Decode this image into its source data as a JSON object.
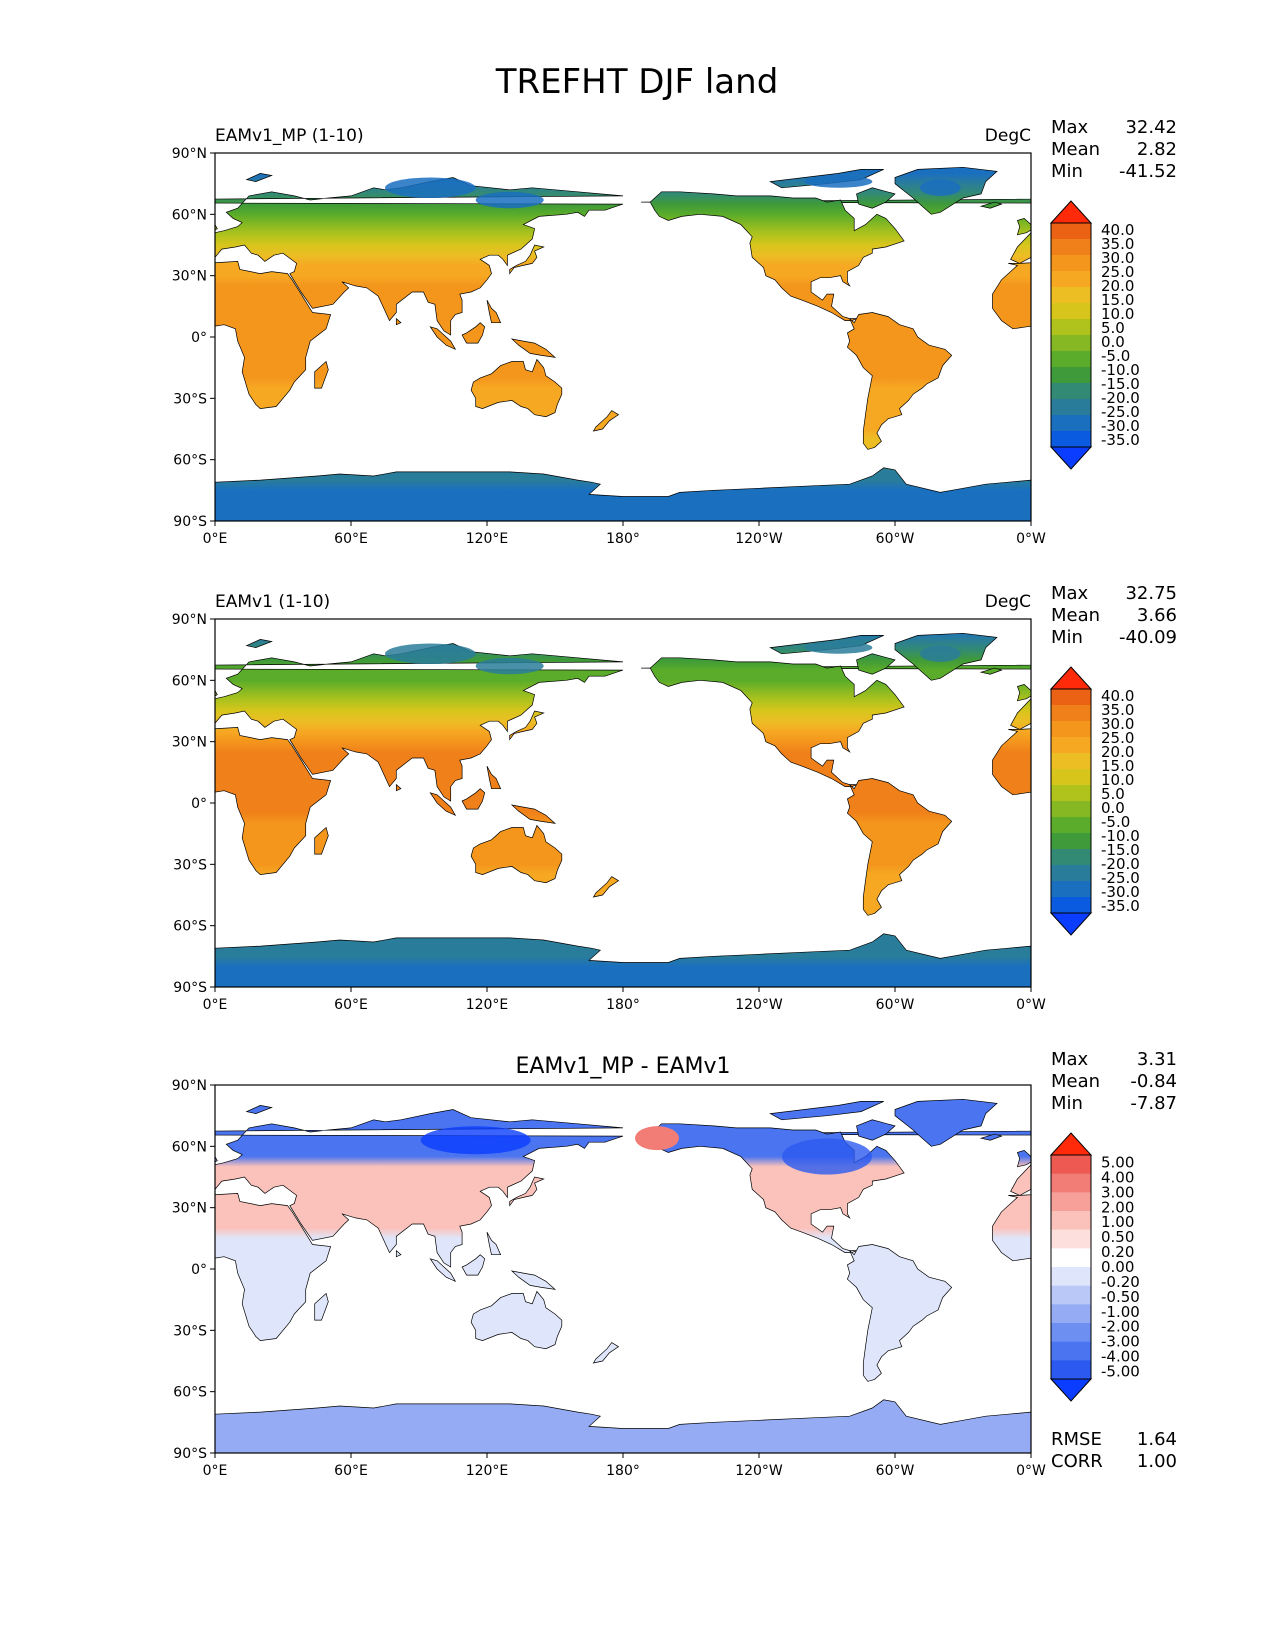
{
  "figure": {
    "title": "TREFHT DJF land",
    "lon_ticks": [
      "0°E",
      "60°E",
      "120°E",
      "180°",
      "120°W",
      "60°W",
      "0°W"
    ],
    "lat_ticks": [
      "90°N",
      "60°N",
      "30°N",
      "0°",
      "30°S",
      "60°S",
      "90°S"
    ],
    "stat_labels": {
      "max": "Max",
      "mean": "Mean",
      "min": "Min",
      "rmse": "RMSE",
      "corr": "CORR"
    }
  },
  "colors": {
    "land_outline": "#000000",
    "temp_scale": [
      "#0a3dff",
      "#0a5be0",
      "#1a6fbf",
      "#2a7d9a",
      "#338a74",
      "#3f9a3a",
      "#5aac2a",
      "#86b823",
      "#b0c31d",
      "#d7c51c",
      "#ecbe24",
      "#f6a823",
      "#f4961c",
      "#f0811a",
      "#ec6215",
      "#ff2a0a"
    ],
    "diff_scale": [
      "#0a3dff",
      "#2c5af0",
      "#4a74f0",
      "#6d8ff2",
      "#95acf4",
      "#b9c8f6",
      "#dfe6fb",
      "#ffffff",
      "#fde0dd",
      "#fbc2bb",
      "#f7a099",
      "#f27d76",
      "#ee5a52",
      "#ff2a0a"
    ]
  },
  "panels": [
    {
      "id": "test",
      "left_title": "EAMv1_MP (1-10)",
      "center_title": "",
      "units": "DegC",
      "stats": {
        "max": "32.42",
        "mean": "2.82",
        "min": "-41.52"
      },
      "colorbar_ticks": [
        "40.0",
        "35.0",
        "30.0",
        "25.0",
        "20.0",
        "15.0",
        "10.0",
        "5.0",
        "0.0",
        "-5.0",
        "-10.0",
        "-15.0",
        "-20.0",
        "-25.0",
        "-30.0",
        "-35.0"
      ]
    },
    {
      "id": "ref",
      "left_title": "EAMv1 (1-10)",
      "center_title": "",
      "units": "DegC",
      "stats": {
        "max": "32.75",
        "mean": "3.66",
        "min": "-40.09"
      },
      "colorbar_ticks": [
        "40.0",
        "35.0",
        "30.0",
        "25.0",
        "20.0",
        "15.0",
        "10.0",
        "5.0",
        "0.0",
        "-5.0",
        "-10.0",
        "-15.0",
        "-20.0",
        "-25.0",
        "-30.0",
        "-35.0"
      ]
    },
    {
      "id": "diff",
      "left_title": "",
      "center_title": "EAMv1_MP - EAMv1",
      "units": "",
      "stats": {
        "max": "3.31",
        "mean": "-0.84",
        "min": "-7.87",
        "rmse": "1.64",
        "corr": "1.00"
      },
      "colorbar_ticks": [
        "5.00",
        "4.00",
        "3.00",
        "2.00",
        "1.00",
        "0.50",
        "0.20",
        "0.00",
        "-0.20",
        "-0.50",
        "-1.00",
        "-2.00",
        "-3.00",
        "-4.00",
        "-5.00"
      ]
    }
  ]
}
